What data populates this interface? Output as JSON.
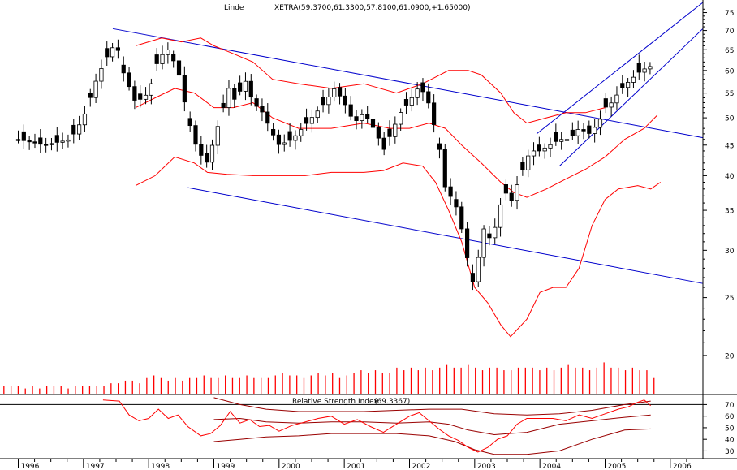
{
  "chart_data": {
    "type": "candlestick",
    "header": {
      "name": "Linde",
      "quote": "XETRA(59.3700,61.3300,57.8100,61.0900,+1.65000)"
    },
    "y_axis": {
      "scale": "log",
      "range": [
        19.5,
        78
      ],
      "ticks": [
        20,
        25,
        30,
        35,
        40,
        45,
        50,
        55,
        60,
        65,
        70,
        75
      ]
    },
    "x_axis": {
      "labels": [
        "1996",
        "1997",
        "1998",
        "1999",
        "2000",
        "2001",
        "2002",
        "2003",
        "2004",
        "2005",
        "2006"
      ]
    },
    "colors": {
      "price": "#000000",
      "bollinger": "#ff0000",
      "trendlines": "#0000cc",
      "volume": "#ff0000"
    },
    "close_path": [
      [
        1996.0,
        46
      ],
      [
        1996.4,
        45
      ],
      [
        1996.8,
        46
      ],
      [
        1997.0,
        50
      ],
      [
        1997.2,
        58
      ],
      [
        1997.35,
        63
      ],
      [
        1997.5,
        67
      ],
      [
        1997.6,
        60
      ],
      [
        1997.8,
        53
      ],
      [
        1998.0,
        55
      ],
      [
        1998.15,
        63
      ],
      [
        1998.3,
        65
      ],
      [
        1998.45,
        60
      ],
      [
        1998.6,
        50
      ],
      [
        1998.75,
        44
      ],
      [
        1998.9,
        42
      ],
      [
        1999.0,
        46
      ],
      [
        1999.1,
        50
      ],
      [
        1999.25,
        57
      ],
      [
        1999.35,
        52
      ],
      [
        1999.45,
        59
      ],
      [
        1999.6,
        53
      ],
      [
        1999.75,
        51
      ],
      [
        1999.9,
        47
      ],
      [
        2000.0,
        45
      ],
      [
        2000.2,
        46
      ],
      [
        2000.35,
        48
      ],
      [
        2000.5,
        50
      ],
      [
        2000.7,
        53
      ],
      [
        2000.85,
        56
      ],
      [
        2001.0,
        53
      ],
      [
        2001.15,
        49
      ],
      [
        2001.3,
        51
      ],
      [
        2001.5,
        47
      ],
      [
        2001.6,
        44
      ],
      [
        2001.75,
        48
      ],
      [
        2001.9,
        52
      ],
      [
        2002.0,
        53
      ],
      [
        2002.1,
        56
      ],
      [
        2002.25,
        55
      ],
      [
        2002.35,
        50
      ],
      [
        2002.45,
        45
      ],
      [
        2002.55,
        38
      ],
      [
        2002.7,
        36
      ],
      [
        2002.85,
        31
      ],
      [
        2002.95,
        26
      ],
      [
        2003.05,
        29
      ],
      [
        2003.15,
        33
      ],
      [
        2003.25,
        31
      ],
      [
        2003.35,
        34
      ],
      [
        2003.45,
        38
      ],
      [
        2003.55,
        36
      ],
      [
        2003.7,
        40
      ],
      [
        2003.85,
        44
      ],
      [
        2004.0,
        44
      ],
      [
        2004.15,
        45
      ],
      [
        2004.3,
        46
      ],
      [
        2004.45,
        46
      ],
      [
        2004.6,
        48
      ],
      [
        2004.75,
        47
      ],
      [
        2004.9,
        49
      ],
      [
        2005.0,
        52
      ],
      [
        2005.1,
        53
      ],
      [
        2005.25,
        56
      ],
      [
        2005.4,
        58
      ],
      [
        2005.55,
        60
      ],
      [
        2005.7,
        61
      ]
    ],
    "bollinger_upper": [
      [
        1997.8,
        66
      ],
      [
        1998.2,
        68
      ],
      [
        1998.5,
        67
      ],
      [
        1998.8,
        68
      ],
      [
        1999.0,
        66
      ],
      [
        1999.3,
        64
      ],
      [
        1999.6,
        62
      ],
      [
        1999.9,
        58
      ],
      [
        2000.3,
        57
      ],
      [
        2000.8,
        56
      ],
      [
        2001.3,
        57
      ],
      [
        2001.8,
        55
      ],
      [
        2002.2,
        57
      ],
      [
        2002.6,
        60
      ],
      [
        2002.9,
        60
      ],
      [
        2003.1,
        59
      ],
      [
        2003.4,
        55
      ],
      [
        2003.6,
        51
      ],
      [
        2003.8,
        49
      ],
      [
        2004.1,
        50
      ],
      [
        2004.4,
        51
      ],
      [
        2004.7,
        51
      ],
      [
        2005.0,
        52
      ]
    ],
    "bollinger_middle": [
      [
        1997.8,
        52
      ],
      [
        1998.1,
        54
      ],
      [
        1998.4,
        56
      ],
      [
        1998.7,
        55
      ],
      [
        1999.0,
        52
      ],
      [
        1999.3,
        52
      ],
      [
        1999.6,
        53
      ],
      [
        1999.9,
        50
      ],
      [
        2000.3,
        48
      ],
      [
        2000.8,
        48
      ],
      [
        2001.3,
        49
      ],
      [
        2001.7,
        48
      ],
      [
        2002.0,
        48
      ],
      [
        2002.3,
        49
      ],
      [
        2002.55,
        48
      ],
      [
        2002.8,
        45
      ],
      [
        2003.1,
        42
      ],
      [
        2003.4,
        39
      ],
      [
        2003.6,
        37.5
      ],
      [
        2003.8,
        36.8
      ],
      [
        2004.1,
        38
      ],
      [
        2004.4,
        39.5
      ],
      [
        2004.7,
        41
      ],
      [
        2005.0,
        43
      ],
      [
        2005.3,
        46
      ],
      [
        2005.6,
        48
      ],
      [
        2005.8,
        50.5
      ]
    ],
    "bollinger_lower": [
      [
        1997.8,
        38.5
      ],
      [
        1998.1,
        40
      ],
      [
        1998.4,
        43
      ],
      [
        1998.7,
        42
      ],
      [
        1998.9,
        40.5
      ],
      [
        1999.2,
        40.2
      ],
      [
        1999.6,
        40
      ],
      [
        2000.0,
        40
      ],
      [
        2000.4,
        40
      ],
      [
        2000.8,
        40.5
      ],
      [
        2001.3,
        40.5
      ],
      [
        2001.6,
        40.8
      ],
      [
        2001.9,
        42
      ],
      [
        2002.2,
        41.5
      ],
      [
        2002.4,
        39
      ],
      [
        2002.6,
        35
      ],
      [
        2002.8,
        31
      ],
      [
        2003.0,
        26
      ],
      [
        2003.2,
        24.5
      ],
      [
        2003.4,
        22.5
      ],
      [
        2003.55,
        21.5
      ],
      [
        2003.8,
        23
      ],
      [
        2004.0,
        25.5
      ],
      [
        2004.2,
        26
      ],
      [
        2004.4,
        26
      ],
      [
        2004.6,
        28
      ],
      [
        2004.8,
        33
      ],
      [
        2005.0,
        36.5
      ],
      [
        2005.2,
        38
      ],
      [
        2005.5,
        38.5
      ],
      [
        2005.7,
        38
      ],
      [
        2005.85,
        39
      ]
    ],
    "trendlines": [
      {
        "from": [
          1997.45,
          70.5
        ],
        "to": [
          2006.5,
          46.3
        ]
      },
      {
        "from": [
          1998.6,
          38.2
        ],
        "to": [
          2006.5,
          26.4
        ]
      },
      {
        "from": [
          2003.95,
          47
        ],
        "to": [
          2006.5,
          78
        ]
      },
      {
        "from": [
          2004.3,
          41.5
        ],
        "to": [
          2006.5,
          70.5
        ]
      }
    ],
    "volume": {
      "ticks": [
        10000
      ],
      "values": [
        3,
        3,
        3,
        2,
        3,
        2,
        3,
        3,
        3,
        2,
        3,
        3,
        3,
        3,
        3,
        4,
        4,
        5,
        5,
        4,
        6,
        7,
        6,
        5,
        6,
        5,
        6,
        6,
        7,
        6,
        6,
        7,
        6,
        6,
        7,
        6,
        6,
        6,
        7,
        8,
        7,
        7,
        6,
        7,
        8,
        7,
        8,
        6,
        7,
        8,
        9,
        8,
        9,
        8,
        8,
        10,
        9,
        10,
        9,
        10,
        9,
        10,
        11,
        10,
        10,
        11,
        10,
        9,
        10,
        10,
        9,
        9,
        10,
        10,
        10,
        9,
        10,
        9,
        10,
        11,
        10,
        10,
        9,
        10,
        12,
        10,
        10,
        9,
        10,
        9,
        9,
        6
      ],
      "max": 14
    },
    "rsi": {
      "title": "Relative Strength Index",
      "value_label": "(69.3367)",
      "range": [
        24,
        78
      ],
      "ticks": [
        30,
        40,
        50,
        60,
        70
      ],
      "levels": [
        30,
        70
      ],
      "values": [
        [
          1997.3,
          74
        ],
        [
          1997.55,
          73
        ],
        [
          1997.7,
          61
        ],
        [
          1997.85,
          56
        ],
        [
          1998.0,
          58
        ],
        [
          1998.15,
          66
        ],
        [
          1998.3,
          58
        ],
        [
          1998.45,
          61
        ],
        [
          1998.6,
          51
        ],
        [
          1998.8,
          43
        ],
        [
          1998.95,
          45
        ],
        [
          1999.1,
          52
        ],
        [
          1999.25,
          64
        ],
        [
          1999.4,
          54
        ],
        [
          1999.55,
          57
        ],
        [
          1999.7,
          51
        ],
        [
          1999.85,
          52
        ],
        [
          2000.0,
          47
        ],
        [
          2000.2,
          52
        ],
        [
          2000.4,
          55
        ],
        [
          2000.6,
          58
        ],
        [
          2000.8,
          60
        ],
        [
          2001.0,
          53
        ],
        [
          2001.2,
          57
        ],
        [
          2001.4,
          51
        ],
        [
          2001.6,
          46
        ],
        [
          2001.8,
          53
        ],
        [
          2002.0,
          60
        ],
        [
          2002.15,
          63
        ],
        [
          2002.3,
          56
        ],
        [
          2002.45,
          49
        ],
        [
          2002.6,
          43
        ],
        [
          2002.75,
          39
        ],
        [
          2002.9,
          33
        ],
        [
          2003.05,
          29
        ],
        [
          2003.2,
          33
        ],
        [
          2003.35,
          40
        ],
        [
          2003.5,
          43
        ],
        [
          2003.65,
          53
        ],
        [
          2003.8,
          58
        ],
        [
          2004.0,
          58
        ],
        [
          2004.2,
          58
        ],
        [
          2004.4,
          56
        ],
        [
          2004.6,
          61
        ],
        [
          2004.8,
          58
        ],
        [
          2005.0,
          62
        ],
        [
          2005.2,
          66
        ],
        [
          2005.35,
          68
        ],
        [
          2005.5,
          72
        ],
        [
          2005.6,
          74
        ],
        [
          2005.7,
          69
        ]
      ],
      "envelope_upper": [
        [
          1999.0,
          76
        ],
        [
          1999.4,
          70
        ],
        [
          1999.8,
          66
        ],
        [
          2000.3,
          64
        ],
        [
          2000.8,
          64
        ],
        [
          2001.3,
          64
        ],
        [
          2001.8,
          65
        ],
        [
          2002.3,
          66
        ],
        [
          2002.8,
          66
        ],
        [
          2003.3,
          62
        ],
        [
          2003.8,
          61
        ],
        [
          2004.3,
          62
        ],
        [
          2004.8,
          65
        ],
        [
          2005.3,
          70
        ],
        [
          2005.7,
          73
        ]
      ],
      "envelope_middle": [
        [
          1999.0,
          57
        ],
        [
          1999.4,
          58
        ],
        [
          1999.8,
          55
        ],
        [
          2000.3,
          54
        ],
        [
          2000.8,
          55
        ],
        [
          2001.3,
          55
        ],
        [
          2001.8,
          54
        ],
        [
          2002.3,
          55
        ],
        [
          2002.6,
          53
        ],
        [
          2002.9,
          48
        ],
        [
          2003.3,
          44
        ],
        [
          2003.8,
          46
        ],
        [
          2004.3,
          53
        ],
        [
          2004.8,
          56
        ],
        [
          2005.3,
          59
        ],
        [
          2005.7,
          61
        ]
      ],
      "envelope_lower": [
        [
          1999.0,
          38
        ],
        [
          1999.4,
          40
        ],
        [
          1999.8,
          42
        ],
        [
          2000.3,
          43
        ],
        [
          2000.8,
          45
        ],
        [
          2001.3,
          45
        ],
        [
          2001.8,
          45
        ],
        [
          2002.3,
          43
        ],
        [
          2002.7,
          38
        ],
        [
          2003.0,
          31
        ],
        [
          2003.3,
          27
        ],
        [
          2003.8,
          27
        ],
        [
          2004.3,
          30
        ],
        [
          2004.8,
          40
        ],
        [
          2005.3,
          48
        ],
        [
          2005.7,
          49
        ]
      ]
    }
  }
}
